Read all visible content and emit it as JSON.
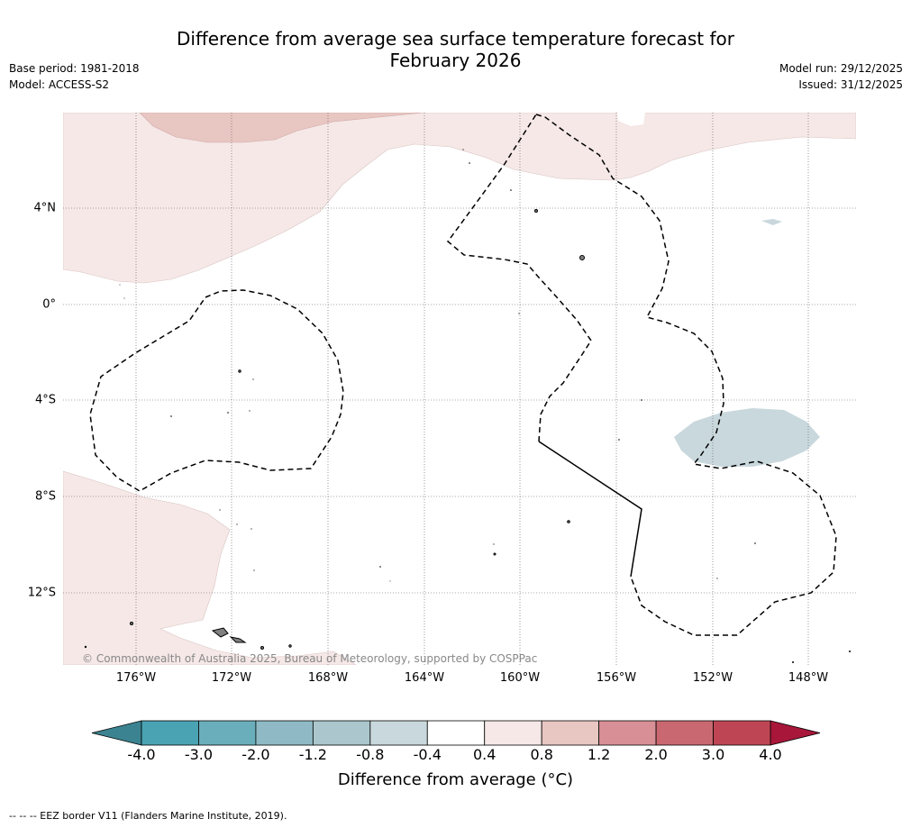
{
  "title": {
    "line1": "Difference from average sea surface temperature forecast for",
    "line2": "February 2026"
  },
  "meta": {
    "base_period": "Base period: 1981-2018",
    "model": "Model: ACCESS-S2",
    "model_run": "Model run: 29/12/2025",
    "issued": "Issued: 31/12/2025"
  },
  "map": {
    "lat_labels": [
      "4°N",
      "0°",
      "4°S",
      "8°S",
      "12°S"
    ],
    "lon_labels": [
      "176°W",
      "172°W",
      "168°W",
      "164°W",
      "160°W",
      "156°W",
      "152°W",
      "148°W"
    ],
    "copyright": "© Commonwealth of Australia 2025, Bureau of Meteorology, supported by COSPPac"
  },
  "colorbar": {
    "ticks": [
      "-4.0",
      "-3.0",
      "-2.0",
      "-1.2",
      "-0.8",
      "-0.4",
      "0.4",
      "0.8",
      "1.2",
      "2.0",
      "3.0",
      "4.0"
    ],
    "colors": [
      "#4aa3b3",
      "#6aaebb",
      "#8fbac5",
      "#abc7cd",
      "#c9d8dd",
      "#ffffff",
      "#f5e8e7",
      "#e8c6c2",
      "#d88f96",
      "#c96870",
      "#be4654"
    ],
    "low_extend_color": "#3b8391",
    "high_extend_color": "#a8173a",
    "title": "Difference from average (°C)"
  },
  "legend_note": "--  --  -- EEZ border V11 (Flanders Marine Institute, 2019)."
}
